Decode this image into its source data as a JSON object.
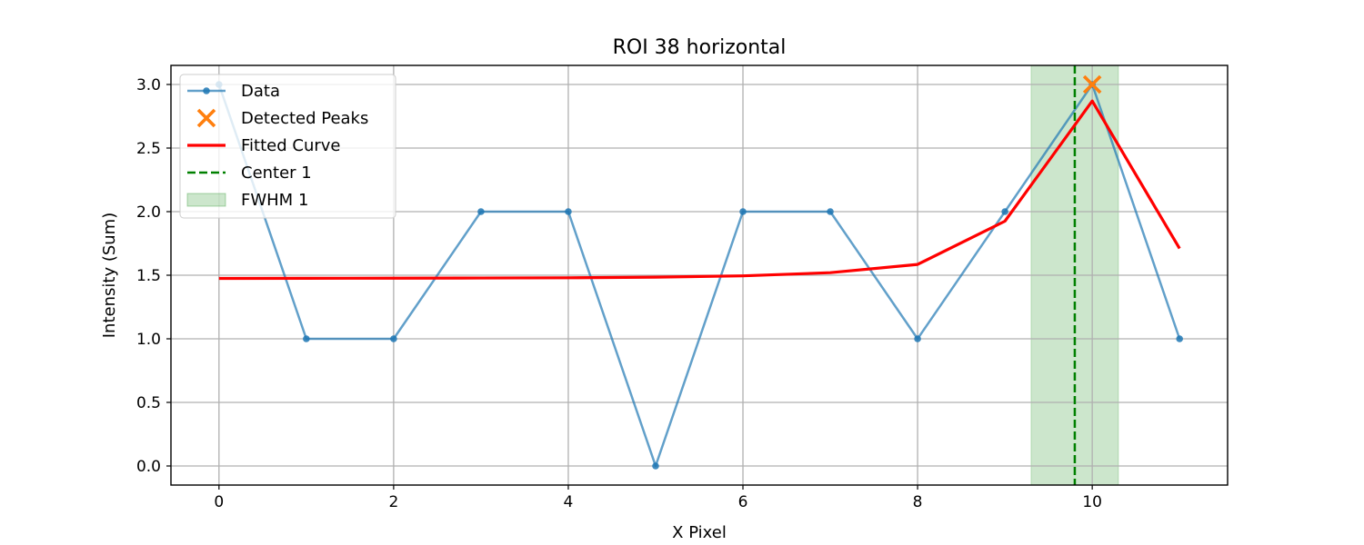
{
  "chart_data": {
    "type": "line",
    "title": "ROI 38 horizontal",
    "xlabel": "X Pixel",
    "ylabel": "Intensity (Sum)",
    "xlim": [
      -0.55,
      11.55
    ],
    "ylim": [
      -0.15,
      3.15
    ],
    "xticks": [
      0,
      2,
      4,
      6,
      8,
      10
    ],
    "yticks": [
      0.0,
      0.5,
      1.0,
      1.5,
      2.0,
      2.5,
      3.0
    ],
    "xtick_labels": [
      "0",
      "2",
      "4",
      "6",
      "8",
      "10"
    ],
    "ytick_labels": [
      "0.0",
      "0.5",
      "1.0",
      "1.5",
      "2.0",
      "2.5",
      "3.0"
    ],
    "grid": true,
    "legend_position": "top-left",
    "series": [
      {
        "name": "Data",
        "kind": "line-markers",
        "color": "#1f77b4",
        "x": [
          0,
          1,
          2,
          3,
          4,
          5,
          6,
          7,
          8,
          9,
          10,
          11
        ],
        "y": [
          3,
          1,
          1,
          2,
          2,
          0,
          2,
          2,
          1,
          2,
          3,
          1
        ]
      },
      {
        "name": "Detected Peaks",
        "kind": "marker-x",
        "color": "#ff7f0e",
        "x": [
          10
        ],
        "y": [
          3
        ]
      },
      {
        "name": "Fitted Curve",
        "kind": "line",
        "color": "#ff0000",
        "x": [
          0,
          1,
          2,
          3,
          4,
          5,
          6,
          7,
          8,
          9,
          10,
          11
        ],
        "y": [
          1.475,
          1.476,
          1.477,
          1.478,
          1.48,
          1.485,
          1.495,
          1.52,
          1.585,
          1.925,
          2.87,
          1.71
        ]
      },
      {
        "name": "Center 1",
        "kind": "vline-dashed",
        "color": "#008000",
        "x": 9.8
      },
      {
        "name": "FWHM 1",
        "kind": "vspan",
        "color": "#008000",
        "x_range": [
          9.3,
          10.3
        ]
      }
    ]
  }
}
